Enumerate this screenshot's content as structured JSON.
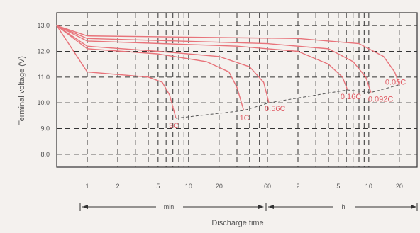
{
  "chart_data": {
    "type": "line",
    "xlabel": "Discharge time",
    "ylabel": "Terminal voltage (V)",
    "x_scale": "log",
    "ylim": [
      7.5,
      13.5
    ],
    "grid": true,
    "y_ticks": [
      "13.0",
      "12.0",
      "11.0",
      "10.0",
      "9.0",
      "8.0"
    ],
    "x_ticks": [
      "1",
      "2",
      "5",
      "10",
      "20",
      "60",
      "2",
      "5",
      "10",
      "20"
    ],
    "ranges": {
      "min_label": "min",
      "h_label": "h"
    },
    "colors": {
      "series": "#e8737a",
      "grid": "#333333",
      "text": "#555555"
    },
    "series": [
      {
        "name": "3C",
        "x_min": [
          0.5,
          1,
          2,
          4,
          5.5,
          6.5,
          7.5
        ],
        "y": [
          13.0,
          11.2,
          11.1,
          11.0,
          10.8,
          10.3,
          9.4
        ]
      },
      {
        "name": "1C",
        "x_min": [
          0.5,
          1,
          5,
          15,
          25,
          30,
          35
        ],
        "y": [
          13.0,
          12.1,
          11.9,
          11.6,
          11.2,
          10.6,
          9.7
        ]
      },
      {
        "name": "0.56C",
        "x_min": [
          0.5,
          1,
          5,
          20,
          40,
          55,
          62
        ],
        "y": [
          13.0,
          12.2,
          12.0,
          11.8,
          11.4,
          10.8,
          10.0
        ]
      },
      {
        "name": "0.16C",
        "x_min": [
          0.5,
          1,
          30,
          120,
          240,
          330,
          370
        ],
        "y": [
          13.0,
          12.4,
          12.2,
          12.0,
          11.5,
          11.0,
          10.5
        ]
      },
      {
        "name": "0.092C",
        "x_min": [
          0.5,
          1,
          60,
          240,
          420,
          560,
          630
        ],
        "y": [
          13.0,
          12.5,
          12.3,
          12.1,
          11.6,
          11.0,
          10.4
        ]
      },
      {
        "name": "0.05C",
        "x_min": [
          0.5,
          1,
          120,
          480,
          840,
          1080,
          1200
        ],
        "y": [
          13.0,
          12.6,
          12.5,
          12.3,
          11.8,
          11.2,
          10.7
        ]
      }
    ]
  }
}
